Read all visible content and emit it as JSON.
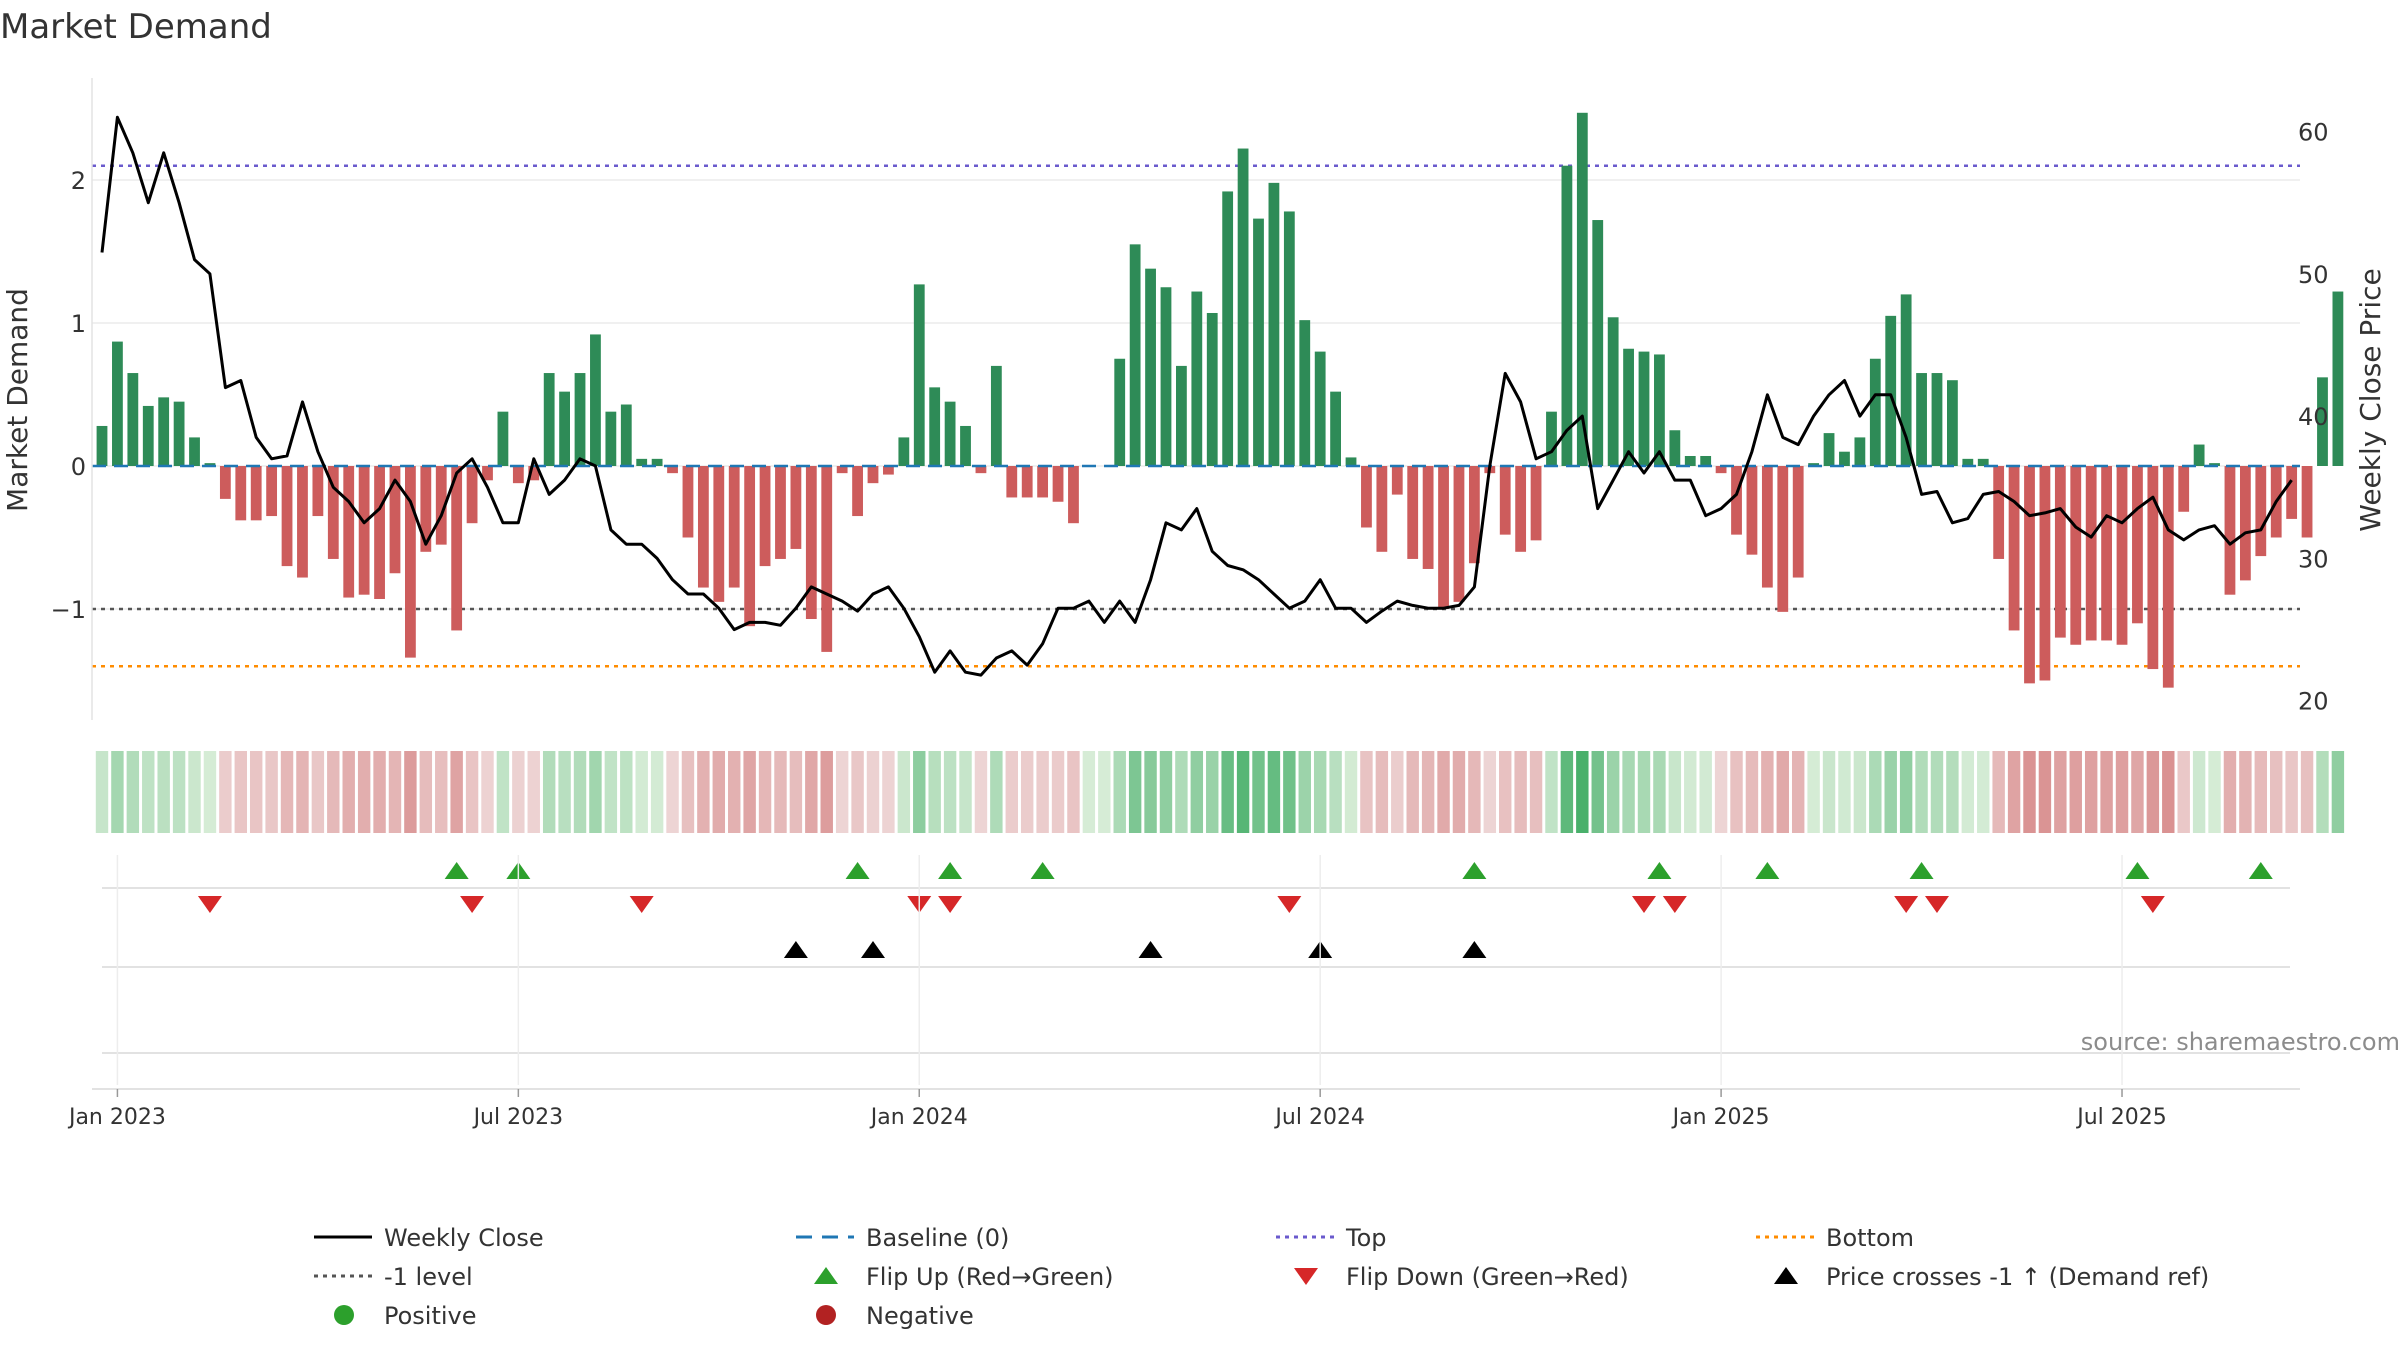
{
  "chart_data": {
    "type": "bar",
    "title": "Market Demand",
    "ylabel_left": "Market Demand",
    "ylabel_right": "Weekly Close Price",
    "left_ticks": [
      {
        "value": 2,
        "label": "2"
      },
      {
        "value": 1,
        "label": "1"
      },
      {
        "value": 0,
        "label": "0"
      },
      {
        "value": -1,
        "label": "−1"
      }
    ],
    "right_ticks": [
      {
        "value": 60,
        "label": "60"
      },
      {
        "value": 50,
        "label": "50"
      },
      {
        "value": 40,
        "label": "40"
      },
      {
        "value": 30,
        "label": "30"
      },
      {
        "value": 20,
        "label": "20"
      }
    ],
    "ylim_left": [
      -1.8,
      2.75
    ],
    "ylim_right": [
      18.5,
      63.5
    ],
    "x_start": "2022-12-26",
    "x_ticks": [
      {
        "week": 1,
        "label": "Jan 2023"
      },
      {
        "week": 27,
        "label": "Jul 2023"
      },
      {
        "week": 53,
        "label": "Jan 2024"
      },
      {
        "week": 79,
        "label": "Jul 2024"
      },
      {
        "week": 105,
        "label": "Jan 2025"
      },
      {
        "week": 131,
        "label": "Jul 2025"
      }
    ],
    "reference_lines": {
      "top": 2.1,
      "bottom": -1.4,
      "minus_one": -1,
      "baseline": 0
    },
    "series": [
      {
        "name": "Market Demand",
        "values": [
          0.28,
          0.87,
          0.65,
          0.42,
          0.48,
          0.45,
          0.2,
          0.02,
          -0.23,
          -0.38,
          -0.38,
          -0.35,
          -0.7,
          -0.78,
          -0.35,
          -0.65,
          -0.92,
          -0.9,
          -0.93,
          -0.75,
          -1.34,
          -0.6,
          -0.55,
          -1.15,
          -0.4,
          -0.1,
          0.38,
          -0.12,
          -0.1,
          0.65,
          0.52,
          0.65,
          0.92,
          0.38,
          0.43,
          0.05,
          0.05,
          -0.05,
          -0.5,
          -0.85,
          -0.95,
          -0.85,
          -1.12,
          -0.7,
          -0.65,
          -0.58,
          -1.07,
          -1.3,
          -0.05,
          -0.35,
          -0.12,
          -0.06,
          0.2,
          1.27,
          0.55,
          0.45,
          0.28,
          -0.05,
          0.7,
          -0.22,
          -0.22,
          -0.22,
          -0.25,
          -0.4,
          0,
          0,
          0.75,
          1.55,
          1.38,
          1.25,
          0.7,
          1.22,
          1.07,
          1.92,
          2.22,
          1.73,
          1.98,
          1.78,
          1.02,
          0.8,
          0.52,
          0.06,
          -0.43,
          -0.6,
          -0.2,
          -0.65,
          -0.72,
          -1.0,
          -0.95,
          -0.68,
          -0.05,
          -0.48,
          -0.6,
          -0.52,
          0.38,
          2.1,
          2.47,
          1.72,
          1.04,
          0.82,
          0.8,
          0.78,
          0.25,
          0.07,
          0.07,
          -0.05,
          -0.48,
          -0.62,
          -0.85,
          -1.02,
          -0.78,
          0.02,
          0.23,
          0.1,
          0.2,
          0.75,
          1.05,
          1.2,
          0.65,
          0.65,
          0.6,
          0.05,
          0.05,
          -0.65,
          -1.15,
          -1.52,
          -1.5,
          -1.2,
          -1.25,
          -1.22,
          -1.22,
          -1.25,
          -1.1,
          -1.42,
          -1.55,
          -0.32,
          0.15,
          0.02,
          -0.9,
          -0.8,
          -0.63,
          -0.5,
          -0.37,
          -0.5,
          0.62,
          1.22
        ]
      },
      {
        "name": "Weekly Close",
        "values": [
          51.5,
          61.0,
          58.5,
          55.0,
          58.5,
          55.0,
          51.0,
          50.0,
          42.0,
          42.5,
          38.5,
          37.0,
          37.2,
          41.0,
          37.5,
          35.0,
          34.0,
          32.5,
          33.5,
          35.5,
          34.0,
          31.0,
          33.0,
          36.0,
          37.0,
          35.0,
          32.5,
          32.5,
          37.0,
          34.5,
          35.5,
          37.0,
          36.5,
          32.0,
          31.0,
          31.0,
          30.0,
          28.5,
          27.5,
          27.5,
          26.5,
          25.0,
          25.5,
          25.5,
          25.3,
          26.5,
          28.0,
          27.5,
          27.0,
          26.3,
          27.5,
          28.0,
          26.5,
          24.5,
          22.0,
          23.5,
          22.0,
          21.8,
          23.0,
          23.5,
          22.5,
          24.0,
          26.5,
          26.5,
          27.0,
          25.5,
          27.0,
          25.5,
          28.5,
          32.5,
          32.0,
          33.5,
          30.5,
          29.5,
          29.2,
          28.5,
          27.5,
          26.5,
          27.0,
          28.5,
          26.5,
          26.5,
          25.5,
          26.3,
          27.0,
          26.7,
          26.5,
          26.5,
          26.7,
          28.0,
          36.5,
          43.0,
          41.0,
          37.0,
          37.5,
          39.0,
          40.0,
          33.5,
          35.5,
          37.5,
          36.0,
          37.5,
          35.5,
          35.5,
          33.0,
          33.5,
          34.5,
          37.5,
          41.5,
          38.5,
          38.0,
          40.0,
          41.5,
          42.5,
          40.0,
          41.5,
          41.5,
          38.5,
          34.5,
          34.7,
          32.5,
          32.8,
          34.5,
          34.7,
          34.0,
          33.0,
          33.2,
          33.5,
          32.2,
          31.5,
          33.0,
          32.5,
          33.5,
          34.3,
          32.0,
          31.3,
          32.0,
          32.3,
          31.0,
          31.8,
          32.0,
          34.0,
          35.5
        ]
      }
    ],
    "flip_up_weeks": [
      23,
      27,
      49,
      55,
      61,
      89,
      101,
      108,
      118,
      132,
      140
    ],
    "flip_down_weeks": [
      7,
      24,
      35,
      53,
      55,
      77,
      100,
      102,
      117,
      119,
      133
    ],
    "price_cross_weeks": [
      45,
      50,
      68,
      79,
      89
    ],
    "source": "source: sharemaestro.com",
    "legend": [
      {
        "label": "Weekly Close",
        "marker": "line",
        "color": "#000000"
      },
      {
        "label": "Baseline (0)",
        "marker": "dash",
        "color": "#1f77b4"
      },
      {
        "label": "Top",
        "marker": "dots",
        "color": "#6a5acd"
      },
      {
        "label": "Bottom",
        "marker": "dots",
        "color": "#ff8c00"
      },
      {
        "label": "-1 level",
        "marker": "dots",
        "color": "#555555"
      },
      {
        "label": "Flip Up (Red→Green)",
        "marker": "tri-up",
        "color": "#2ca02c"
      },
      {
        "label": "Flip Down (Green→Red)",
        "marker": "tri-down",
        "color": "#d62728"
      },
      {
        "label": "Price crosses -1 ↑ (Demand ref)",
        "marker": "tri-up",
        "color": "#000000"
      },
      {
        "label": "Positive",
        "marker": "circle",
        "color": "#2ca02c"
      },
      {
        "label": "Negative",
        "marker": "circle",
        "color": "#b22222"
      }
    ],
    "colors": {
      "positive_bar": "#2e8b57",
      "negative_bar": "#cd5c5c",
      "flip_up": "#2ca02c",
      "flip_down": "#d62728",
      "cross": "#000000"
    }
  }
}
